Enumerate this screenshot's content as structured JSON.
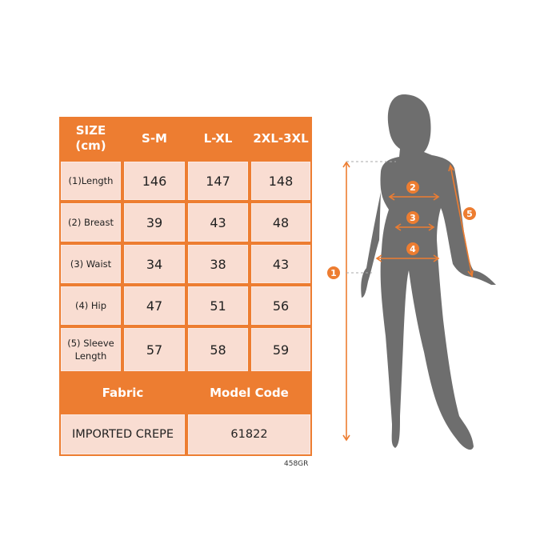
{
  "table": {
    "header": {
      "size_label": "SIZE",
      "unit_label": "(cm)",
      "columns": [
        "S-M",
        "L-XL",
        "2XL-3XL"
      ]
    },
    "rows": [
      {
        "label": "(1)Length",
        "values": [
          "146",
          "147",
          "148"
        ]
      },
      {
        "label": "(2) Breast",
        "values": [
          "39",
          "43",
          "48"
        ]
      },
      {
        "label": "(3) Waist",
        "values": [
          "34",
          "38",
          "43"
        ]
      },
      {
        "label": "(4) Hip",
        "values": [
          "47",
          "51",
          "56"
        ]
      },
      {
        "label": "(5) Sleeve",
        "label2": "Length",
        "values": [
          "57",
          "58",
          "59"
        ]
      }
    ],
    "footer": {
      "fabric_label": "Fabric",
      "model_code_label": "Model Code",
      "fabric_value": "IMPORTED CREPE",
      "model_code_value": "61822"
    }
  },
  "product_code": "458GR",
  "diagram": {
    "markers": [
      "1",
      "2",
      "3",
      "4",
      "5"
    ]
  },
  "colors": {
    "accent": "#ed7d31",
    "cell_fill": "#f9ddd2",
    "silhouette": "#6e6e6e"
  }
}
